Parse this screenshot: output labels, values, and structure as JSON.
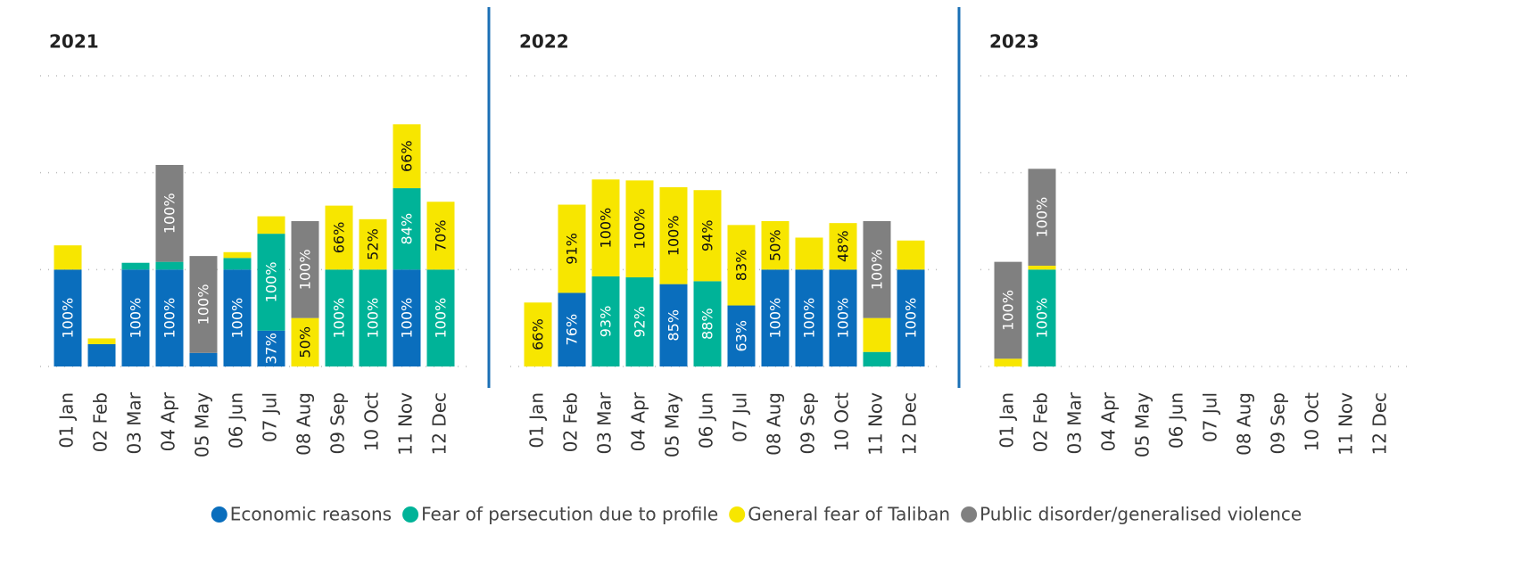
{
  "chart_data": [
    {
      "type": "bar",
      "stacked": true,
      "title": "2021",
      "categories": [
        "01 Jan",
        "02 Feb",
        "03 Mar",
        "04 Apr",
        "05 May",
        "06 Jun",
        "07 Jul",
        "08 Aug",
        "09 Sep",
        "10 Oct",
        "11 Nov",
        "12 Dec"
      ],
      "ylim": [
        0,
        300
      ],
      "yticks": [
        0,
        100,
        200,
        300
      ],
      "grid": true,
      "series": [
        {
          "name": "Economic reasons",
          "color": "#0a6ebd",
          "values": [
            100,
            23,
            100,
            100,
            14,
            100,
            37,
            null,
            null,
            null,
            100,
            null
          ],
          "value_labels": [
            "100%",
            null,
            "100%",
            "100%",
            null,
            "100%",
            "37%",
            null,
            null,
            null,
            "100%",
            null
          ]
        },
        {
          "name": "Fear of persecution due to profile",
          "color": "#00b398",
          "values": [
            null,
            null,
            7,
            8,
            null,
            12,
            100,
            null,
            100,
            100,
            84,
            100
          ],
          "value_labels": [
            null,
            null,
            null,
            null,
            null,
            null,
            "100%",
            null,
            "100%",
            "100%",
            "84%",
            "100%"
          ]
        },
        {
          "name": "General fear of Taliban",
          "color": "#f7e600",
          "values": [
            25,
            6,
            null,
            null,
            null,
            6,
            18,
            50,
            66,
            52,
            66,
            70
          ],
          "value_labels": [
            null,
            null,
            null,
            null,
            null,
            null,
            null,
            "50%",
            "66%",
            "52%",
            "66%",
            "70%"
          ]
        },
        {
          "name": "Public disorder/generalised violence",
          "color": "#808080",
          "values": [
            null,
            null,
            null,
            100,
            100,
            null,
            null,
            100,
            null,
            null,
            null,
            null
          ],
          "value_labels": [
            null,
            null,
            null,
            "100%",
            "100%",
            null,
            null,
            "100%",
            null,
            null,
            null,
            null
          ]
        }
      ]
    },
    {
      "type": "bar",
      "stacked": true,
      "title": "2022",
      "categories": [
        "01 Jan",
        "02 Feb",
        "03 Mar",
        "04 Apr",
        "05 May",
        "06 Jun",
        "07 Jul",
        "08 Aug",
        "09 Sep",
        "10 Oct",
        "11 Nov",
        "12 Dec"
      ],
      "ylim": [
        0,
        300
      ],
      "yticks": [
        0,
        100,
        200,
        300
      ],
      "grid": true,
      "series": [
        {
          "name": "Economic reasons",
          "color": "#0a6ebd",
          "values": [
            null,
            76,
            null,
            null,
            85,
            null,
            63,
            100,
            100,
            100,
            null,
            100
          ],
          "value_labels": [
            null,
            "76%",
            null,
            null,
            "85%",
            null,
            "63%",
            "100%",
            "100%",
            "100%",
            null,
            "100%"
          ]
        },
        {
          "name": "Fear of persecution due to profile",
          "color": "#00b398",
          "values": [
            null,
            null,
            93,
            92,
            null,
            88,
            null,
            null,
            null,
            null,
            15,
            null
          ],
          "value_labels": [
            null,
            null,
            "93%",
            "92%",
            null,
            "88%",
            null,
            null,
            null,
            null,
            null,
            null
          ]
        },
        {
          "name": "General fear of Taliban",
          "color": "#f7e600",
          "values": [
            66,
            91,
            100,
            100,
            100,
            94,
            83,
            50,
            33,
            48,
            35,
            30
          ],
          "value_labels": [
            "66%",
            "91%",
            "100%",
            "100%",
            "100%",
            "94%",
            "83%",
            "50%",
            null,
            "48%",
            null,
            null
          ]
        },
        {
          "name": "Public disorder/generalised violence",
          "color": "#808080",
          "values": [
            null,
            null,
            null,
            null,
            null,
            null,
            null,
            null,
            null,
            null,
            100,
            null
          ],
          "value_labels": [
            null,
            null,
            null,
            null,
            null,
            null,
            null,
            null,
            null,
            null,
            "100%",
            null
          ]
        }
      ]
    },
    {
      "type": "bar",
      "stacked": true,
      "title": "2023",
      "categories": [
        "01 Jan",
        "02 Feb",
        "03 Mar",
        "04 Apr",
        "05 May",
        "06 Jun",
        "07 Jul",
        "08 Aug",
        "09 Sep",
        "10 Oct",
        "11 Nov",
        "12 Dec"
      ],
      "ylim": [
        0,
        300
      ],
      "yticks": [
        0,
        100,
        200,
        300
      ],
      "grid": true,
      "series": [
        {
          "name": "Economic reasons",
          "color": "#0a6ebd",
          "values": [
            null,
            null,
            null,
            null,
            null,
            null,
            null,
            null,
            null,
            null,
            null,
            null
          ],
          "value_labels": [
            null,
            null,
            null,
            null,
            null,
            null,
            null,
            null,
            null,
            null,
            null,
            null
          ]
        },
        {
          "name": "Fear of persecution due to profile",
          "color": "#00b398",
          "values": [
            null,
            100,
            null,
            null,
            null,
            null,
            null,
            null,
            null,
            null,
            null,
            null
          ],
          "value_labels": [
            null,
            "100%",
            null,
            null,
            null,
            null,
            null,
            null,
            null,
            null,
            null,
            null
          ]
        },
        {
          "name": "General fear of Taliban",
          "color": "#f7e600",
          "values": [
            8,
            4,
            null,
            null,
            null,
            null,
            null,
            null,
            null,
            null,
            null,
            null
          ],
          "value_labels": [
            null,
            null,
            null,
            null,
            null,
            null,
            null,
            null,
            null,
            null,
            null,
            null
          ]
        },
        {
          "name": "Public disorder/generalised violence",
          "color": "#808080",
          "values": [
            100,
            100,
            null,
            null,
            null,
            null,
            null,
            null,
            null,
            null,
            null,
            null
          ],
          "value_labels": [
            "100%",
            "100%",
            null,
            null,
            null,
            null,
            null,
            null,
            null,
            null,
            null,
            null
          ]
        }
      ]
    }
  ]
}
